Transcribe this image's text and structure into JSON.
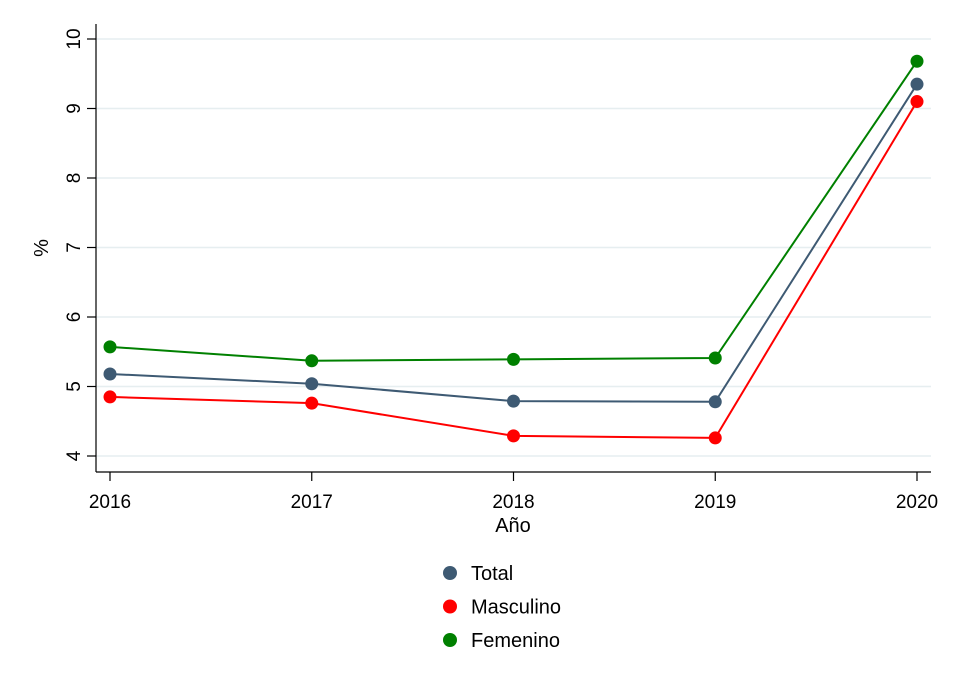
{
  "chart_data": {
    "type": "line",
    "xlabel": "Año",
    "ylabel": "%",
    "x": [
      2016,
      2017,
      2018,
      2019,
      2020
    ],
    "xlim": [
      2016,
      2020
    ],
    "ylim": [
      4,
      10
    ],
    "yticks": [
      4,
      5,
      6,
      7,
      8,
      9,
      10
    ],
    "grid": true,
    "legend_position": "bottom",
    "series": [
      {
        "name": "Total",
        "color": "#3e5a73",
        "values": [
          5.18,
          5.04,
          4.79,
          4.78,
          9.35
        ]
      },
      {
        "name": "Masculino",
        "color": "#ff0000",
        "values": [
          4.85,
          4.76,
          4.29,
          4.26,
          9.1
        ]
      },
      {
        "name": "Femenino",
        "color": "#008000",
        "values": [
          5.57,
          5.37,
          5.39,
          5.41,
          9.68
        ]
      }
    ]
  }
}
